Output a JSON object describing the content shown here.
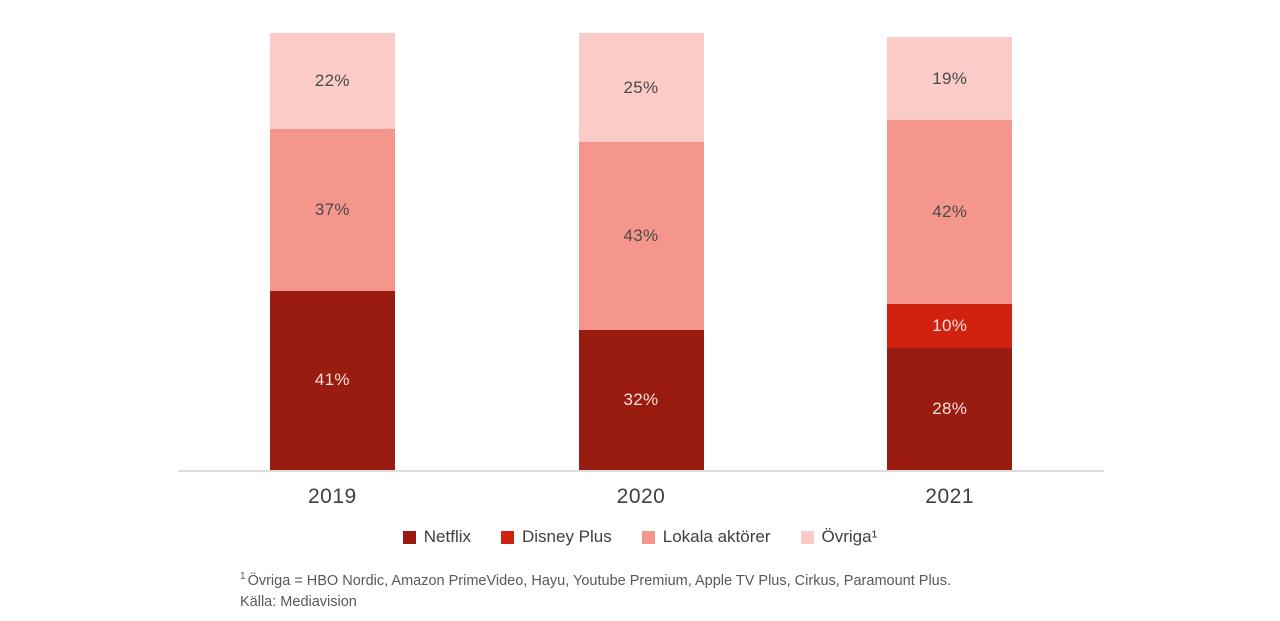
{
  "chart_data": {
    "type": "bar",
    "stacked": true,
    "title": "",
    "unit": "%",
    "categories": [
      "2019",
      "2020",
      "2021"
    ],
    "series": [
      {
        "name": "Netflix",
        "legend": "Netflix",
        "color": "#9A1B10",
        "label_color": "#F6E2DE",
        "values": [
          41,
          32,
          28
        ]
      },
      {
        "name": "Disney Plus",
        "legend": "Disney Plus",
        "color": "#D1220F",
        "label_color": "#F6E2DE",
        "values": [
          0,
          0,
          10
        ]
      },
      {
        "name": "Lokala aktörer",
        "legend": "Lokala aktörer",
        "color": "#F4968B",
        "label_color": "#4A4A4A",
        "values": [
          37,
          43,
          42
        ]
      },
      {
        "name": "Övriga",
        "legend": "Övriga¹",
        "color": "#FBCCC7",
        "label_color": "#4A4A4A",
        "values": [
          22,
          25,
          19
        ]
      }
    ],
    "ylim": [
      0,
      100
    ],
    "grid": false,
    "legend_position": "bottom",
    "footnote": {
      "sup": "1",
      "line1": "Övriga = HBO Nordic, Amazon PrimeVideo, Hayu, Youtube Premium, Apple TV Plus, Cirkus, Paramount Plus.",
      "line2": "Källa: Mediavision"
    }
  },
  "colors": {
    "background": "#FFFFFF",
    "axis_line": "#DCDCDC",
    "tick_label": "#404040",
    "legend_text": "#3F3F3F",
    "footnote_text": "#595959"
  }
}
